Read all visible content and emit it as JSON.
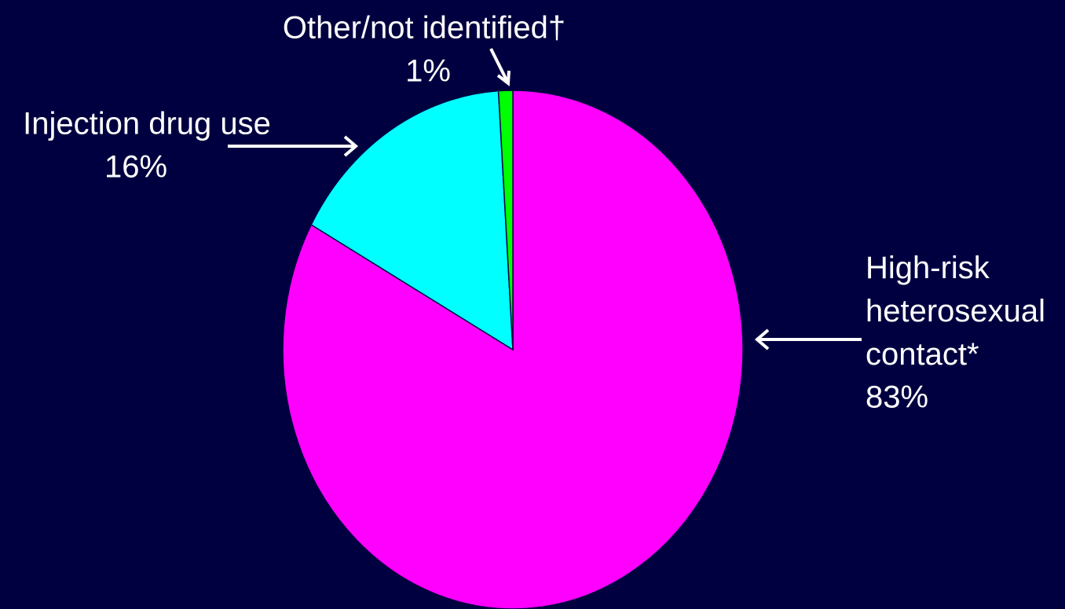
{
  "chart_data": {
    "type": "pie",
    "categories": [
      "High-risk heterosexual contact*",
      "Injection drug use",
      "Other/not identified†"
    ],
    "values": [
      83,
      16,
      1
    ],
    "value_labels": [
      "83%",
      "16%",
      "1%"
    ],
    "colors": [
      "#ff00ff",
      "#00ffff",
      "#00ff00"
    ]
  }
}
